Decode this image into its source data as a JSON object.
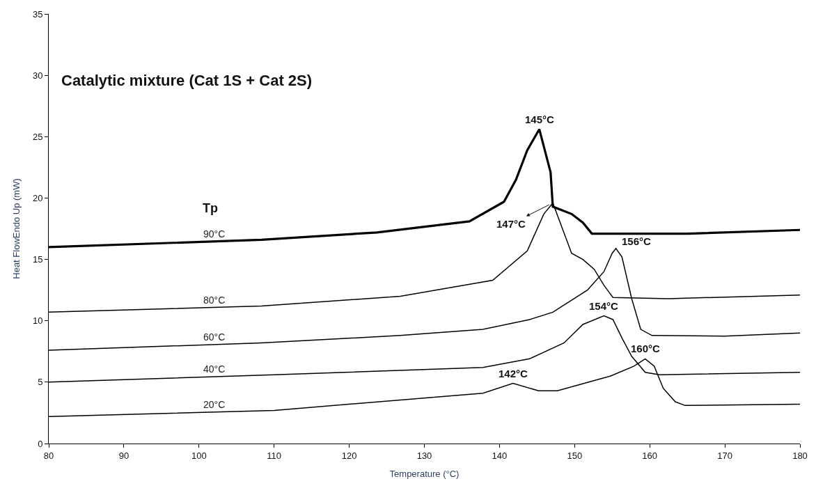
{
  "chart_data": {
    "type": "line",
    "title": "Catalytic mixture (Cat 1S + Cat 2S)",
    "xlabel": "Temperature (°C)",
    "ylabel": "Heat FlowEndo Up (mW)",
    "xlim": [
      80,
      180
    ],
    "xticks": [
      80,
      90,
      100,
      110,
      120,
      130,
      140,
      150,
      160,
      170,
      180
    ],
    "ylim": [
      0,
      35
    ],
    "yticks": [
      0,
      5,
      10,
      15,
      20,
      25,
      30,
      35
    ],
    "grid": false,
    "legend": false,
    "marker": "none",
    "line_style": "solid",
    "series": [
      {
        "name": "90°C",
        "color": "#000000",
        "x": [
          80,
          108.3,
          123.7,
          136,
          140.6,
          142.2,
          143.7,
          145.3,
          146.8,
          147.1,
          149.6,
          151.1,
          152.3,
          165,
          180
        ],
        "values": [
          16.0,
          16.6,
          17.2,
          18.1,
          19.7,
          21.5,
          23.9,
          25.6,
          22.1,
          19.3,
          18.7,
          18.0,
          17.1,
          17.1,
          17.4
        ]
      },
      {
        "name": "80°C",
        "color": "#000000",
        "x": [
          80,
          108.3,
          126.8,
          139.1,
          143.7,
          145.9,
          147.1,
          149.6,
          151.1,
          152.6,
          153.9,
          155.1,
          162.5,
          180
        ],
        "values": [
          10.7,
          11.2,
          12.0,
          13.3,
          15.7,
          18.7,
          19.6,
          15.5,
          15.0,
          14.2,
          12.9,
          11.9,
          11.8,
          12.1
        ]
      },
      {
        "name": "60°C",
        "color": "#000000",
        "x": [
          80,
          108.3,
          126.8,
          137.8,
          144,
          147.1,
          151.7,
          153.9,
          155,
          155.5,
          156.3,
          157.6,
          158.8,
          160.3,
          170,
          180
        ],
        "values": [
          7.6,
          8.2,
          8.8,
          9.3,
          10.1,
          10.7,
          12.5,
          14.0,
          15.5,
          15.9,
          15.2,
          11.8,
          9.3,
          8.8,
          8.75,
          9.0
        ]
      },
      {
        "name": "40°C",
        "color": "#000000",
        "x": [
          80,
          110,
          137.8,
          144,
          148.6,
          151.1,
          153.9,
          155.1,
          156.3,
          157.6,
          159.4,
          161.3,
          180
        ],
        "values": [
          5.0,
          5.6,
          6.2,
          6.9,
          8.2,
          9.7,
          10.4,
          10.1,
          8.6,
          7.1,
          5.8,
          5.6,
          5.8
        ]
      },
      {
        "name": "20°C",
        "color": "#000000",
        "x": [
          80,
          110,
          137.8,
          141.8,
          145.2,
          147.7,
          154.8,
          157.9,
          159.4,
          160.6,
          161.8,
          163.4,
          164.7,
          180
        ],
        "values": [
          2.2,
          2.7,
          4.1,
          4.9,
          4.3,
          4.3,
          5.5,
          6.3,
          6.9,
          6.3,
          4.5,
          3.4,
          3.1,
          3.2
        ]
      }
    ],
    "annotations": [
      "Tp",
      {
        "text": "145°C",
        "x": 145.3,
        "y": 25.6
      },
      {
        "text": "147°C",
        "x": 147.1,
        "y": 19.6
      },
      {
        "text": "156°C",
        "x": 155.5,
        "y": 15.9
      },
      {
        "text": "154°C",
        "x": 153.9,
        "y": 10.4
      },
      {
        "text": "160°C",
        "x": 159.4,
        "y": 6.9
      },
      {
        "text": "142°C",
        "x": 141.8,
        "y": 4.9
      }
    ]
  }
}
